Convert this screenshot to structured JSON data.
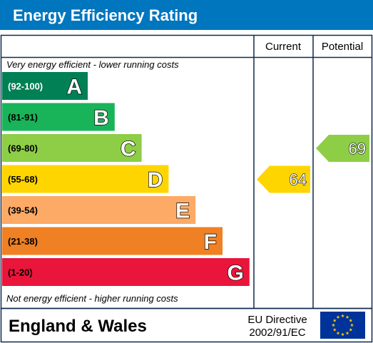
{
  "chart_data": {
    "type": "bar",
    "title": "Energy Efficiency Rating",
    "column_headers": {
      "current": "Current",
      "potential": "Potential"
    },
    "top_note": "Very energy efficient - lower running costs",
    "bottom_note": "Not energy efficient - higher running costs",
    "bands": [
      {
        "range": "(92-100)",
        "letter": "A",
        "min": 92,
        "max": 100,
        "color": "#008054"
      },
      {
        "range": "(81-91)",
        "letter": "B",
        "min": 81,
        "max": 91,
        "color": "#19b459"
      },
      {
        "range": "(69-80)",
        "letter": "C",
        "min": 69,
        "max": 80,
        "color": "#8dce46"
      },
      {
        "range": "(55-68)",
        "letter": "D",
        "min": 55,
        "max": 68,
        "color": "#ffd500"
      },
      {
        "range": "(39-54)",
        "letter": "E",
        "min": 39,
        "max": 54,
        "color": "#fcaa65"
      },
      {
        "range": "(21-38)",
        "letter": "F",
        "min": 21,
        "max": 38,
        "color": "#ef8023"
      },
      {
        "range": "(1-20)",
        "letter": "G",
        "min": 1,
        "max": 20,
        "color": "#e9153b"
      }
    ],
    "current": {
      "value": 64,
      "label": "64",
      "color": "#ffd500"
    },
    "potential": {
      "value": 69,
      "label": "69",
      "color": "#8dce46"
    },
    "footer": {
      "region": "England & Wales",
      "directive_line1": "EU Directive",
      "directive_line2": "2002/91/EC"
    },
    "colors": {
      "title_bar": "#0076bf",
      "border": "#0f2a4d",
      "eu_flag": "#003399",
      "eu_stars": "#ffcc00"
    }
  }
}
